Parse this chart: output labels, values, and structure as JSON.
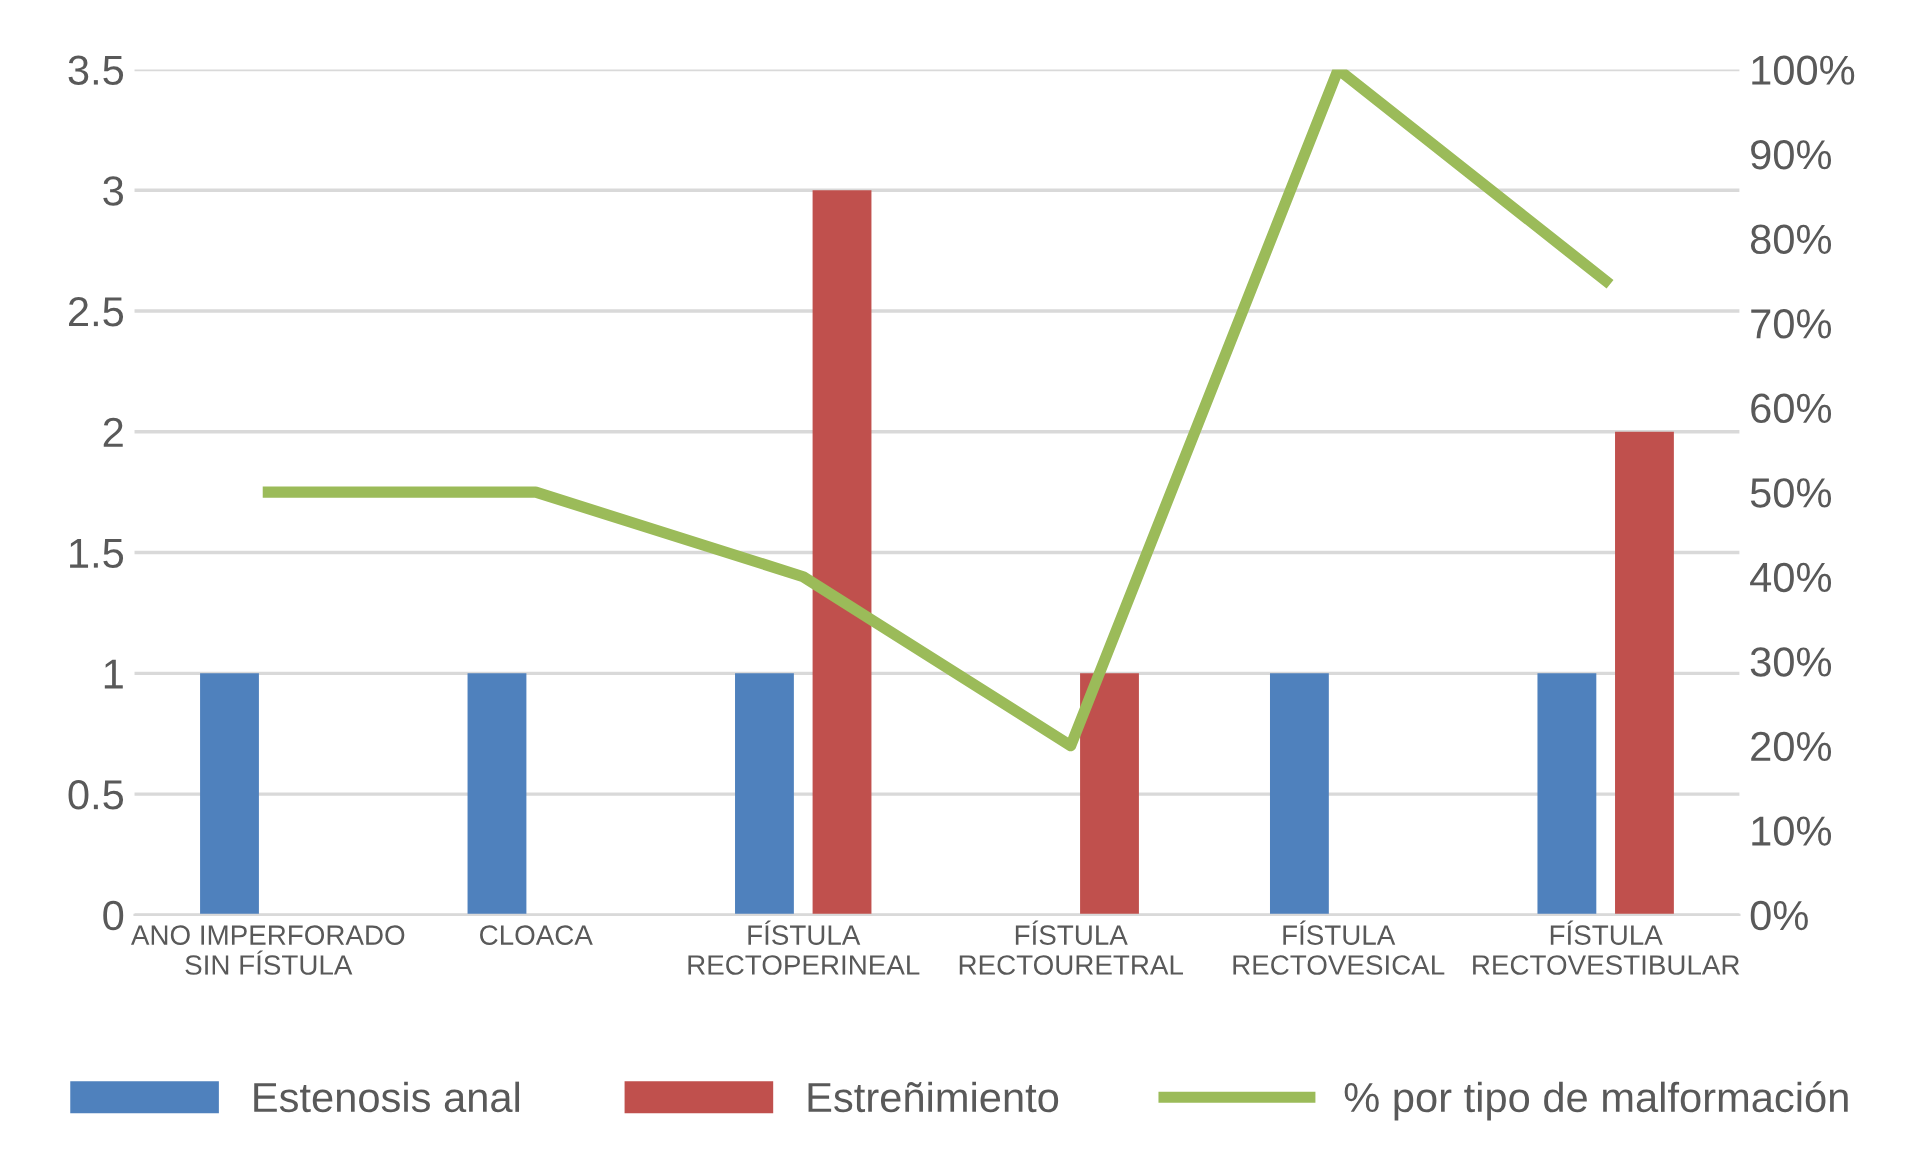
{
  "chart_data": {
    "type": "bar",
    "categories": [
      "ANO IMPERFORADO\nSIN FÍSTULA",
      "CLOACA",
      "FÍSTULA\nRECTOPERINEAL",
      "FÍSTULA\nRECTOURETRAL",
      "FÍSTULA\nRECTOVESICAL",
      "FÍSTULA\nRECTOVESTIBULAR"
    ],
    "series": [
      {
        "name": "Estenosis anal",
        "color": "#4f81bd",
        "values": [
          1,
          1,
          1,
          null,
          1,
          1
        ]
      },
      {
        "name": "Estreñimiento",
        "color": "#c0504d",
        "values": [
          null,
          null,
          3,
          1,
          null,
          2
        ]
      },
      {
        "name": "% por tipo de malformación",
        "type": "line",
        "axis": "y2",
        "color": "#9bbb59",
        "values": [
          50,
          50,
          40,
          20,
          100,
          75
        ]
      }
    ],
    "ylim": [
      0,
      3.5
    ],
    "yticks": [
      0,
      0.5,
      1,
      1.5,
      2,
      2.5,
      3,
      3.5
    ],
    "y2lim": [
      0,
      100
    ],
    "y2ticks": [
      {
        "value": 0,
        "label": "0%"
      },
      {
        "value": 10,
        "label": "10%"
      },
      {
        "value": 20,
        "label": "20%"
      },
      {
        "value": 30,
        "label": "30%"
      },
      {
        "value": 40,
        "label": "40%"
      },
      {
        "value": 50,
        "label": "50%"
      },
      {
        "value": 60,
        "label": "60%"
      },
      {
        "value": 70,
        "label": "70%"
      },
      {
        "value": 80,
        "label": "80%"
      },
      {
        "value": 90,
        "label": "90%"
      },
      {
        "value": 100,
        "label": "100%"
      }
    ],
    "grid": "y",
    "legend": "bottom",
    "marker": "none",
    "line_style": "solid"
  }
}
